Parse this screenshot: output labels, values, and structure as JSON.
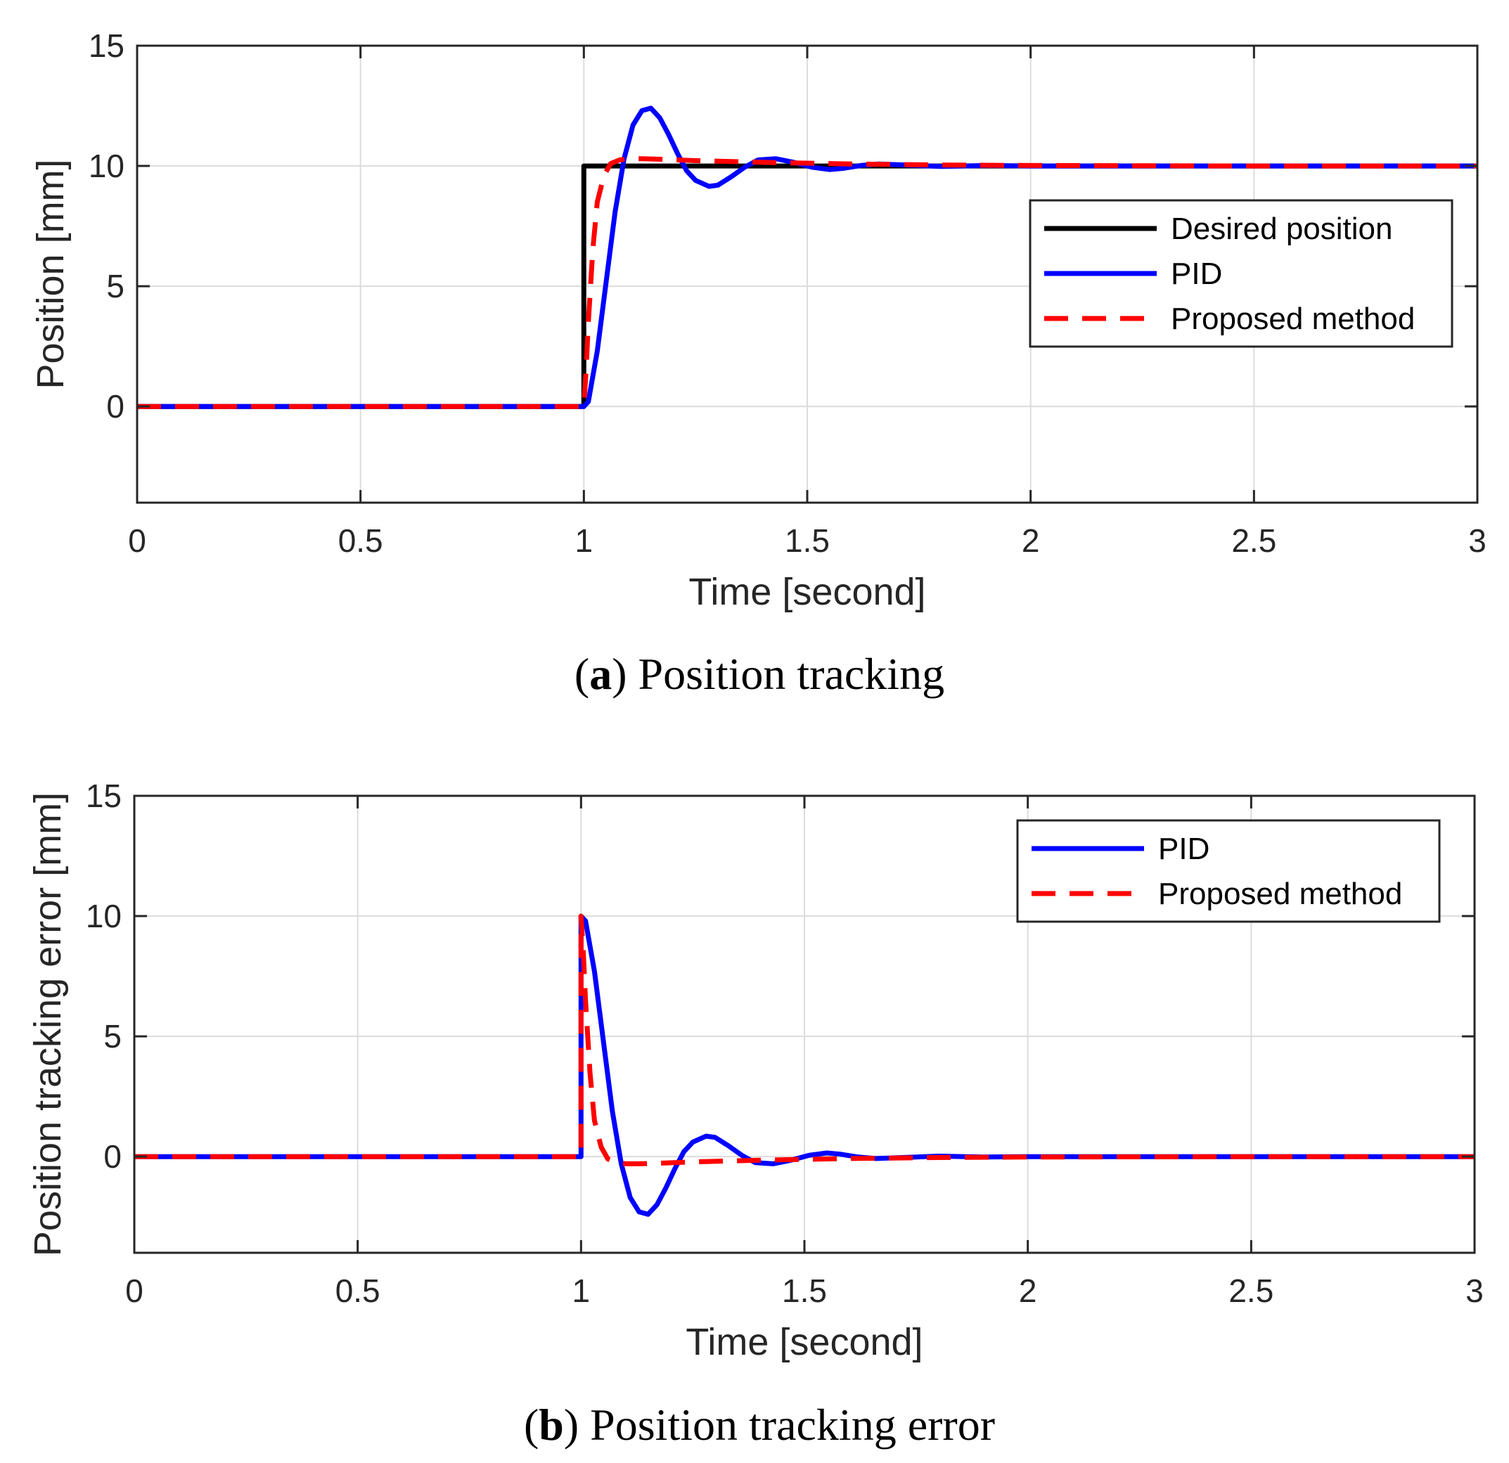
{
  "colors": {
    "desired": "#000000",
    "pid": "#0000ff",
    "proposed": "#ff0000",
    "grid": "#dcdcdc",
    "axis": "#262626"
  },
  "chart_data": [
    {
      "type": "line",
      "caption_letter": "a",
      "caption_text": "Position tracking",
      "xlabel": "Time [second]",
      "ylabel": "Position [mm]",
      "xlim": [
        0,
        3
      ],
      "ylim": [
        -4,
        15
      ],
      "xticks": [
        0,
        0.5,
        1,
        1.5,
        2,
        2.5,
        3
      ],
      "xtick_labels": [
        "0",
        "0.5",
        "1",
        "1.5",
        "2",
        "2.5",
        "3"
      ],
      "yticks": [
        0,
        5,
        10,
        15
      ],
      "ytick_labels": [
        "0",
        "5",
        "10",
        "15"
      ],
      "grid": true,
      "legend_position": "top-right",
      "series": [
        {
          "name": "Desired position",
          "style": "solid",
          "color": "#000000",
          "x": [
            0,
            1.0,
            1.0,
            3
          ],
          "y": [
            0,
            0,
            10,
            10
          ]
        },
        {
          "name": "PID",
          "style": "solid",
          "color": "#0000ff",
          "x": [
            0,
            1.0,
            1.01,
            1.03,
            1.05,
            1.07,
            1.09,
            1.11,
            1.13,
            1.15,
            1.17,
            1.19,
            1.21,
            1.23,
            1.25,
            1.28,
            1.3,
            1.33,
            1.36,
            1.39,
            1.43,
            1.47,
            1.51,
            1.55,
            1.58,
            1.62,
            1.66,
            1.72,
            1.8,
            1.9,
            2.0,
            2.2,
            2.5,
            3.0
          ],
          "y": [
            0,
            0,
            0.2,
            2.3,
            5.2,
            8.1,
            10.3,
            11.7,
            12.3,
            12.4,
            12.0,
            11.3,
            10.5,
            9.8,
            9.4,
            9.15,
            9.2,
            9.55,
            9.95,
            10.25,
            10.3,
            10.15,
            9.95,
            9.85,
            9.9,
            10.02,
            10.08,
            10.04,
            9.98,
            10.02,
            10.0,
            10.0,
            10.0,
            10.0
          ]
        },
        {
          "name": "Proposed method",
          "style": "dashed",
          "color": "#ff0000",
          "x": [
            0,
            1.0,
            1.005,
            1.01,
            1.02,
            1.03,
            1.045,
            1.06,
            1.08,
            1.1,
            1.13,
            1.17,
            1.25,
            1.4,
            1.6,
            1.8,
            2.0,
            2.5,
            3.0
          ],
          "y": [
            0,
            0,
            1.5,
            3.5,
            6.5,
            8.5,
            9.6,
            10.1,
            10.25,
            10.3,
            10.3,
            10.28,
            10.22,
            10.15,
            10.08,
            10.04,
            10.02,
            10.0,
            10.0
          ]
        }
      ]
    },
    {
      "type": "line",
      "caption_letter": "b",
      "caption_text": "Position tracking error",
      "xlabel": "Time [second]",
      "ylabel": "Position tracking error [mm]",
      "xlim": [
        0,
        3
      ],
      "ylim": [
        -4,
        15
      ],
      "xticks": [
        0,
        0.5,
        1,
        1.5,
        2,
        2.5,
        3
      ],
      "xtick_labels": [
        "0",
        "0.5",
        "1",
        "1.5",
        "2",
        "2.5",
        "3"
      ],
      "yticks": [
        0,
        5,
        10,
        15
      ],
      "ytick_labels": [
        "0",
        "5",
        "10",
        "15"
      ],
      "grid": true,
      "legend_position": "top-right",
      "series": [
        {
          "name": "PID",
          "style": "solid",
          "color": "#0000ff",
          "x": [
            0,
            1.0,
            1.0,
            1.01,
            1.03,
            1.05,
            1.07,
            1.09,
            1.11,
            1.13,
            1.15,
            1.17,
            1.19,
            1.21,
            1.23,
            1.25,
            1.28,
            1.3,
            1.33,
            1.36,
            1.39,
            1.43,
            1.47,
            1.51,
            1.55,
            1.58,
            1.62,
            1.66,
            1.72,
            1.8,
            1.9,
            2.0,
            2.2,
            2.5,
            3.0
          ],
          "y": [
            0,
            0,
            10.0,
            9.8,
            7.7,
            4.8,
            1.9,
            -0.3,
            -1.7,
            -2.3,
            -2.4,
            -2.0,
            -1.3,
            -0.5,
            0.2,
            0.6,
            0.85,
            0.8,
            0.45,
            0.05,
            -0.25,
            -0.3,
            -0.15,
            0.05,
            0.15,
            0.1,
            -0.02,
            -0.08,
            -0.04,
            0.02,
            -0.02,
            0.0,
            0.0,
            0.0,
            0.0
          ]
        },
        {
          "name": "Proposed method",
          "style": "dashed",
          "color": "#ff0000",
          "x": [
            0,
            1.0,
            1.0,
            1.005,
            1.01,
            1.02,
            1.03,
            1.045,
            1.06,
            1.08,
            1.1,
            1.13,
            1.17,
            1.25,
            1.4,
            1.6,
            1.8,
            2.0,
            2.5,
            3.0
          ],
          "y": [
            0,
            0,
            10.0,
            8.5,
            6.5,
            3.5,
            1.5,
            0.4,
            -0.1,
            -0.25,
            -0.3,
            -0.3,
            -0.28,
            -0.22,
            -0.15,
            -0.08,
            -0.04,
            -0.02,
            0.0,
            0.0
          ]
        }
      ]
    }
  ]
}
